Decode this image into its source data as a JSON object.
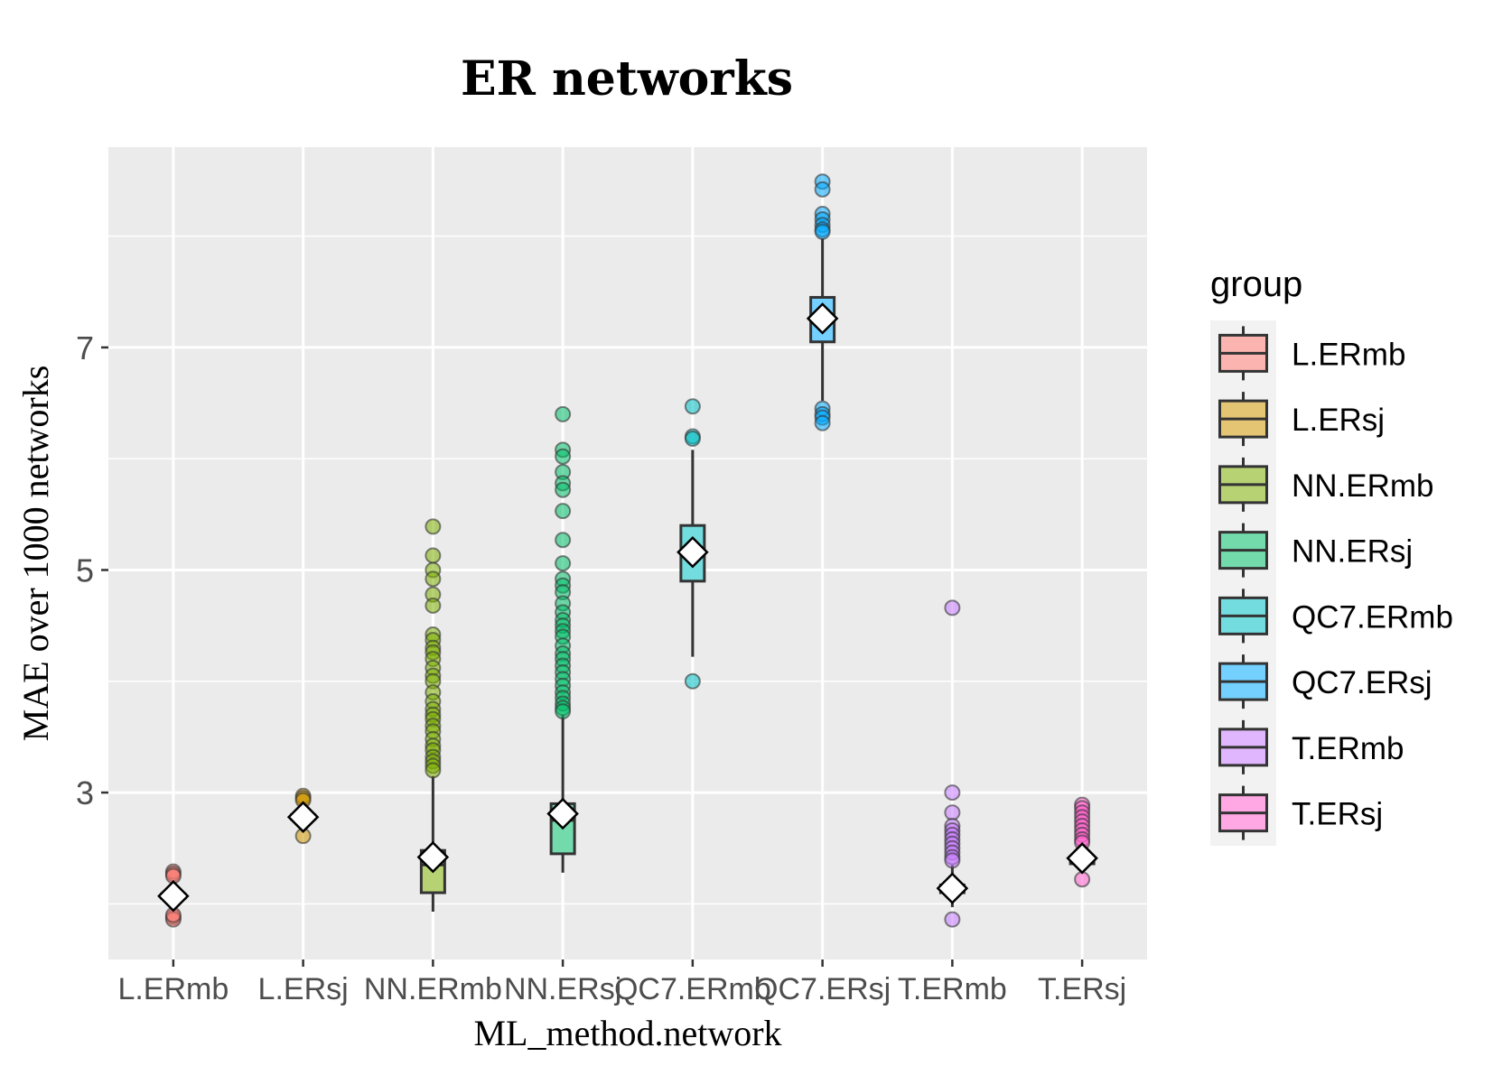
{
  "chart_data": {
    "type": "boxplot",
    "title": "ER networks",
    "xlabel": "ML_method.network",
    "ylabel": "MAE over 1000 networks",
    "ylim": [
      1.5,
      8.8
    ],
    "y_ticks": [
      3,
      5,
      7
    ],
    "grid": true,
    "legend_title": "group",
    "legend_position": "right",
    "categories": [
      "L.ERmb",
      "L.ERsj",
      "NN.ERmb",
      "NN.ERsj",
      "QC7.ERmb",
      "QC7.ERsj",
      "T.ERmb",
      "T.ERsj"
    ],
    "colors": {
      "L.ERmb": "#F8766D",
      "L.ERsj": "#CD9600",
      "NN.ERmb": "#7CAE00",
      "NN.ERsj": "#00BE67",
      "QC7.ERmb": "#00BFC4",
      "QC7.ERsj": "#00A9FF",
      "T.ERmb": "#C77CFF",
      "T.ERsj": "#FF61CC"
    },
    "series": [
      {
        "name": "L.ERmb",
        "q1": 2.05,
        "median": 2.07,
        "q3": 2.09,
        "whisker_low": 1.95,
        "whisker_high": 2.2,
        "mean": 2.07,
        "outliers": [
          2.29,
          2.27,
          2.25,
          1.88,
          1.86,
          1.9
        ]
      },
      {
        "name": "L.ERsj",
        "q1": 2.76,
        "median": 2.78,
        "q3": 2.8,
        "whisker_low": 2.68,
        "whisker_high": 2.9,
        "mean": 2.78,
        "outliers": [
          2.97,
          2.95,
          2.93,
          2.61
        ]
      },
      {
        "name": "NN.ERmb",
        "q1": 2.1,
        "median": 2.35,
        "q3": 2.48,
        "whisker_low": 1.93,
        "whisker_high": 3.15,
        "mean": 2.42,
        "outliers": [
          5.39,
          5.13,
          5.0,
          4.92,
          4.78,
          4.68,
          4.42,
          4.37,
          4.3,
          4.26,
          4.2,
          4.12,
          4.05,
          4.0,
          3.9,
          3.82,
          3.75,
          3.7,
          3.66,
          3.6,
          3.55,
          3.48,
          3.42,
          3.38,
          3.32,
          3.28,
          3.24,
          3.2
        ]
      },
      {
        "name": "NN.ERsj",
        "q1": 2.45,
        "median": 2.75,
        "q3": 2.9,
        "whisker_low": 2.28,
        "whisker_high": 3.7,
        "mean": 2.81,
        "outliers": [
          6.4,
          6.08,
          6.02,
          5.88,
          5.78,
          5.72,
          5.53,
          5.27,
          5.06,
          4.92,
          4.86,
          4.8,
          4.7,
          4.62,
          4.55,
          4.5,
          4.45,
          4.4,
          4.32,
          4.25,
          4.2,
          4.14,
          4.08,
          4.02,
          3.96,
          3.9,
          3.85,
          3.8,
          3.76,
          3.73
        ]
      },
      {
        "name": "QC7.ERmb",
        "q1": 4.9,
        "median": 5.15,
        "q3": 5.4,
        "whisker_low": 4.22,
        "whisker_high": 6.08,
        "mean": 5.16,
        "outliers": [
          6.47,
          6.2,
          6.18,
          4.0
        ]
      },
      {
        "name": "QC7.ERsj",
        "q1": 7.05,
        "median": 7.25,
        "q3": 7.45,
        "whisker_low": 6.52,
        "whisker_high": 7.98,
        "mean": 7.26,
        "outliers": [
          8.49,
          8.42,
          8.2,
          8.15,
          8.1,
          8.06,
          8.04,
          6.45,
          6.4,
          6.37,
          6.32
        ]
      },
      {
        "name": "T.ERmb",
        "q1": 2.1,
        "median": 2.13,
        "q3": 2.17,
        "whisker_low": 1.97,
        "whisker_high": 2.35,
        "mean": 2.14,
        "outliers": [
          4.66,
          3.0,
          2.82,
          2.7,
          2.66,
          2.62,
          2.58,
          2.54,
          2.5,
          2.46,
          2.42,
          2.39,
          1.86
        ]
      },
      {
        "name": "T.ERsj",
        "q1": 2.36,
        "median": 2.39,
        "q3": 2.42,
        "whisker_low": 2.3,
        "whisker_high": 2.5,
        "mean": 2.41,
        "outliers": [
          2.89,
          2.86,
          2.82,
          2.78,
          2.74,
          2.7,
          2.66,
          2.62,
          2.58,
          2.55,
          2.22
        ]
      }
    ]
  }
}
